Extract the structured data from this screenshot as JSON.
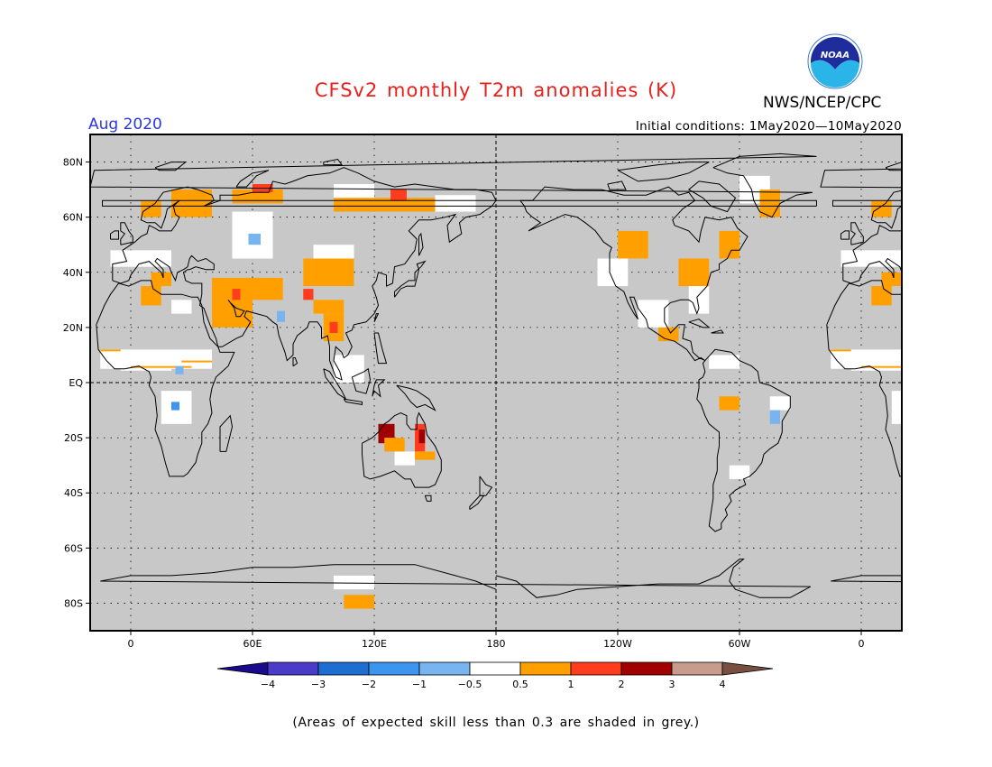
{
  "header": {
    "title": "CFSv2 monthly T2m anomalies (K)",
    "period": "Aug 2020",
    "initial_conditions": "Initial conditions: 1May2020—10May2020",
    "agency": "NWS/NCEP/CPC",
    "logo_text": "NOAA"
  },
  "map": {
    "lat_labels": [
      "80N",
      "60N",
      "40N",
      "20N",
      "EQ",
      "20S",
      "40S",
      "60S",
      "80S"
    ],
    "lat_values": [
      80,
      60,
      40,
      20,
      0,
      -20,
      -40,
      -60,
      -80
    ],
    "lon_labels": [
      "0",
      "60E",
      "120E",
      "180",
      "120W",
      "60W",
      "0"
    ],
    "lon_values": [
      0,
      60,
      120,
      180,
      240,
      300,
      360
    ],
    "lon_range": [
      -20,
      380
    ],
    "lat_range": [
      -90,
      90
    ],
    "background": "#c8c8c8",
    "colors": {
      "gt_0_5": "#ffa000",
      "gt_1": "#ff3c1e",
      "gt_2": "#a00000",
      "neutral": "#ffffff",
      "lt_neg_0_5": "#78b4f0",
      "lt_neg_1": "#3c96f0"
    }
  },
  "colorbar": {
    "labels": [
      "−4",
      "−3",
      "−2",
      "−1",
      "−0.5",
      "0.5",
      "1",
      "2",
      "3",
      "4"
    ],
    "colors": [
      "#1a0a8c",
      "#4a3cc8",
      "#1e6ed2",
      "#3c96f0",
      "#78b4f0",
      "#ffffff",
      "#ffa000",
      "#ff3c1e",
      "#a00000",
      "#c89b8c",
      "#785042"
    ]
  },
  "footnote": "(Areas of expected skill less than 0.3 are shaded in grey.)"
}
